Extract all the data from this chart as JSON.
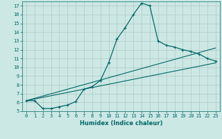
{
  "xlabel": "Humidex (Indice chaleur)",
  "ylabel": "",
  "bg_color": "#cce8e4",
  "grid_color": "#b0c8c4",
  "line_color": "#006666",
  "xlim": [
    -0.5,
    23.5
  ],
  "ylim": [
    5,
    17.5
  ],
  "yticks": [
    5,
    6,
    7,
    8,
    9,
    10,
    11,
    12,
    13,
    14,
    15,
    16,
    17
  ],
  "xticks": [
    0,
    1,
    2,
    3,
    4,
    5,
    6,
    7,
    8,
    9,
    10,
    11,
    12,
    13,
    14,
    15,
    16,
    17,
    18,
    19,
    20,
    21,
    22,
    23
  ],
  "curve1_x": [
    0,
    1,
    2,
    3,
    4,
    5,
    6,
    7,
    8,
    9,
    10,
    11,
    12,
    13,
    14,
    15,
    16,
    17,
    18,
    19,
    20,
    21,
    22,
    23
  ],
  "curve1_y": [
    6.2,
    6.2,
    5.3,
    5.3,
    5.5,
    5.7,
    6.1,
    7.5,
    7.8,
    8.5,
    10.5,
    13.2,
    14.5,
    16.0,
    17.3,
    17.0,
    13.0,
    12.5,
    12.3,
    12.0,
    11.8,
    11.5,
    11.0,
    10.7
  ],
  "curve2_x": [
    0,
    23
  ],
  "curve2_y": [
    6.2,
    10.5
  ],
  "curve3_x": [
    0,
    23
  ],
  "curve3_y": [
    6.2,
    12.2
  ]
}
